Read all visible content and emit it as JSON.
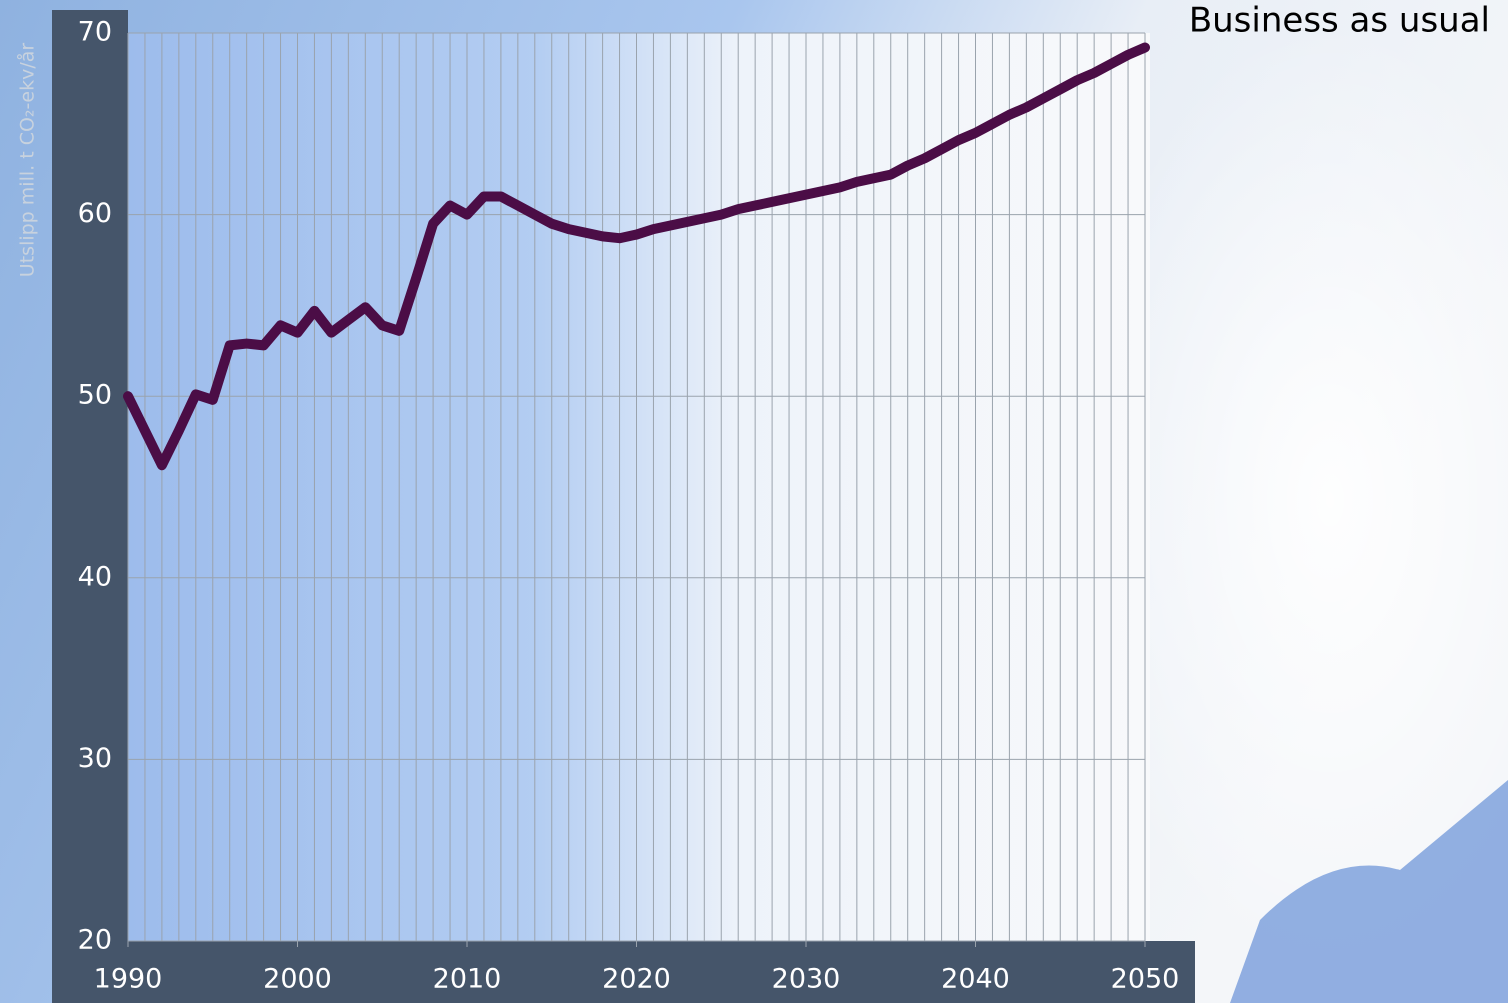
{
  "chart_data": {
    "type": "line",
    "y_label": "Utslipp mill. t CO₂-ekv/år",
    "x": [
      1990,
      1991,
      1992,
      1993,
      1994,
      1995,
      1996,
      1997,
      1998,
      1999,
      2000,
      2001,
      2002,
      2003,
      2004,
      2005,
      2006,
      2007,
      2008,
      2009,
      2010,
      2011,
      2012,
      2013,
      2014,
      2015,
      2016,
      2017,
      2018,
      2019,
      2020,
      2021,
      2022,
      2023,
      2024,
      2025,
      2026,
      2027,
      2028,
      2029,
      2030,
      2031,
      2032,
      2033,
      2034,
      2035,
      2036,
      2037,
      2038,
      2039,
      2040,
      2041,
      2042,
      2043,
      2044,
      2045,
      2046,
      2047,
      2048,
      2049,
      2050
    ],
    "series": [
      {
        "name": "Business as usual",
        "color": "#4b0d46",
        "values": [
          50.0,
          48.1,
          46.2,
          48.1,
          50.1,
          49.8,
          52.8,
          52.9,
          52.8,
          53.9,
          53.5,
          54.7,
          53.5,
          54.2,
          54.9,
          53.9,
          53.6,
          56.5,
          59.5,
          60.5,
          60.0,
          61.0,
          61.0,
          60.5,
          60.0,
          59.5,
          59.2,
          59.0,
          58.8,
          58.7,
          58.9,
          59.2,
          59.4,
          59.6,
          59.8,
          60.0,
          60.3,
          60.5,
          60.7,
          60.9,
          61.1,
          61.3,
          61.5,
          61.8,
          62.0,
          62.2,
          62.7,
          63.1,
          63.6,
          64.1,
          64.5,
          65.0,
          65.5,
          65.9,
          66.4,
          66.9,
          67.4,
          67.8,
          68.3,
          68.8,
          69.2
        ]
      }
    ],
    "xlim": [
      1990,
      2050
    ],
    "xticks": [
      1990,
      2000,
      2010,
      2020,
      2030,
      2040,
      2050
    ],
    "x_minor_grid_step": 1,
    "ylim": [
      20,
      70
    ],
    "yticks": [
      20,
      30,
      40,
      50,
      60,
      70
    ],
    "grid": true
  }
}
